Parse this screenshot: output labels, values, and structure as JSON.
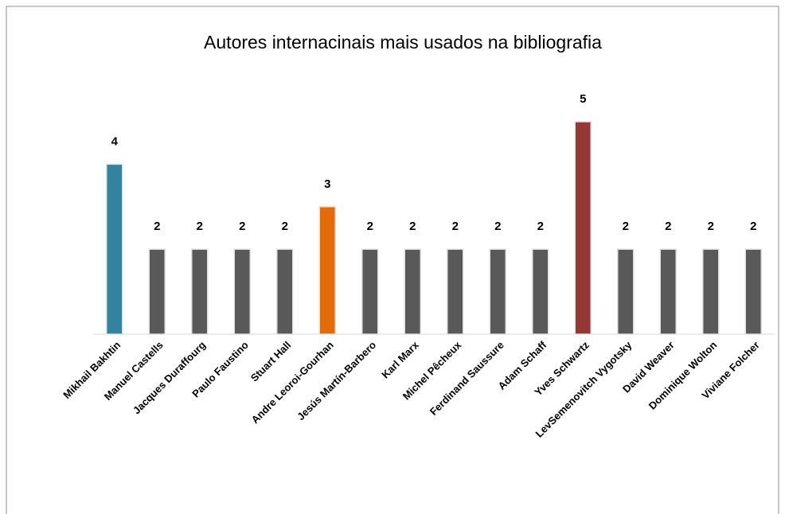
{
  "chart_data": {
    "type": "bar",
    "title": "Autores internacinais mais usados na bibliografia",
    "categories": [
      "Mikhail Bakhtin",
      "Manuel Castells",
      "Jacques Duraffourg",
      "Paulo Faustino",
      "Stuart Hall",
      "Andre Leoroi-Gourhan",
      "Jesús Martín-Barbero",
      "Karl Marx",
      "Michel Pêcheux",
      "Ferdinand  Saussure",
      "Adam Schaff",
      "Yves Schwartz",
      "LevSemenovitch Vygotsky",
      "David Weaver",
      "Dominique Wolton",
      "Viviane Folcher"
    ],
    "values": [
      4,
      2,
      2,
      2,
      2,
      3,
      2,
      2,
      2,
      2,
      2,
      5,
      2,
      2,
      2,
      2
    ],
    "colors": [
      "#31849b",
      "#595959",
      "#595959",
      "#595959",
      "#595959",
      "#e36c0a",
      "#595959",
      "#595959",
      "#595959",
      "#595959",
      "#595959",
      "#953735",
      "#595959",
      "#595959",
      "#595959",
      "#595959"
    ],
    "ylim": [
      0,
      5
    ]
  }
}
